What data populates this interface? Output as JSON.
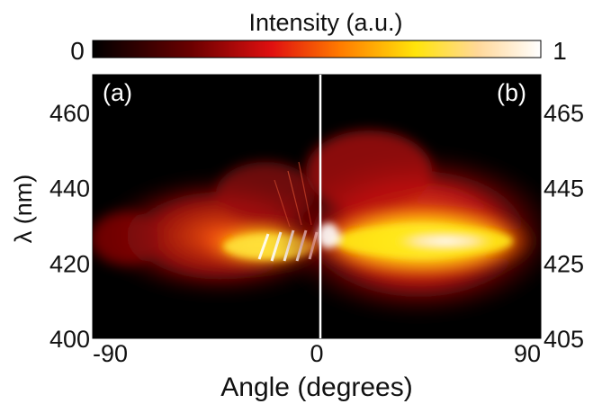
{
  "chart_data": {
    "type": "heatmap",
    "colorbar": {
      "label": "Intensity (a.u.)",
      "min_label": "0",
      "max_label": "1",
      "range": [
        0,
        1
      ],
      "colormap": [
        "#000000",
        "#6b0000",
        "#e01010",
        "#ff7a00",
        "#ffe40a",
        "#ffffff"
      ]
    },
    "xlabel": "Angle (degrees)",
    "ylabel": "λ (nm)",
    "x_ticks": [
      {
        "value": -90,
        "label": "-90"
      },
      {
        "value": 0,
        "label": "0"
      },
      {
        "value": 90,
        "label": "90"
      }
    ],
    "xlim": [
      -90,
      90
    ],
    "y_left": {
      "ylim": [
        400,
        470
      ],
      "ticks": [
        {
          "value": 400,
          "label": "400"
        },
        {
          "value": 420,
          "label": "420"
        },
        {
          "value": 440,
          "label": "440"
        },
        {
          "value": 460,
          "label": "460"
        }
      ]
    },
    "y_right": {
      "ylim": [
        405,
        475
      ],
      "ticks": [
        {
          "value": 405,
          "label": "405"
        },
        {
          "value": 425,
          "label": "425"
        },
        {
          "value": 445,
          "label": "445"
        },
        {
          "value": 465,
          "label": "465"
        }
      ]
    },
    "panels": [
      {
        "label": "(a)",
        "angle_range": [
          -90,
          0
        ],
        "peak_wavelength_nm": 422
      },
      {
        "label": "(b)",
        "angle_range": [
          0,
          90
        ],
        "peak_wavelength_nm": 425
      }
    ]
  }
}
